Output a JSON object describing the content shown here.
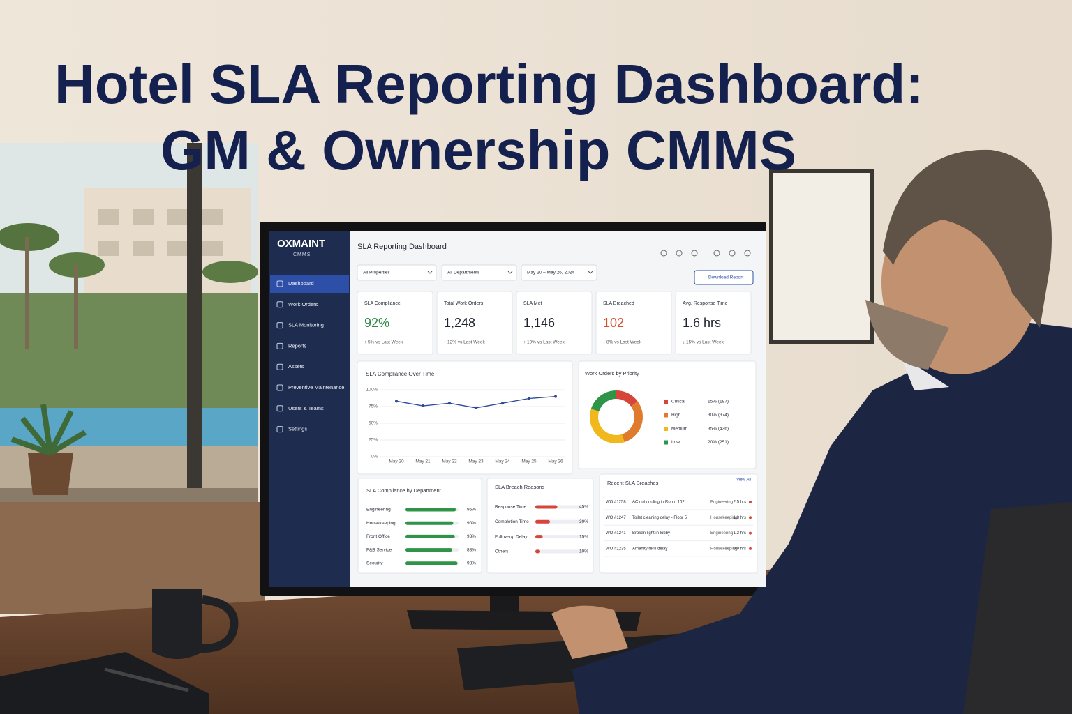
{
  "header": {
    "title_lines": [
      "Hotel SLA Reporting Dashboard:",
      "GM & Ownership CMMS"
    ]
  },
  "dashboard": {
    "brand": "OXMAINT",
    "brand_sub": "CMMS",
    "nav": [
      "Dashboard",
      "Work Orders",
      "SLA Monitoring",
      "Reports",
      "Assets",
      "Preventive Maintenance",
      "Users & Teams",
      "Settings"
    ],
    "page_title": "SLA Reporting Dashboard",
    "filters": [
      "All Properties",
      "All Departments",
      "May 20 – May 26, 2024"
    ],
    "download_button": "Download Report",
    "kpis": [
      {
        "label": "SLA Compliance",
        "value": "92%",
        "change": "↑ 5% vs Last Week",
        "color": "#2f8a4a"
      },
      {
        "label": "Total Work Orders",
        "value": "1,248",
        "change": "↑ 12% vs Last Week",
        "color": "#1f2430"
      },
      {
        "label": "SLA Met",
        "value": "1,146",
        "change": "↑ 10% vs Last Week",
        "color": "#1f2430"
      },
      {
        "label": "SLA Breached",
        "value": "102",
        "change": "↓ 8% vs Last Week",
        "color": "#d0502e"
      },
      {
        "label": "Avg. Response Time",
        "value": "1.6 hrs",
        "change": "↓ 15% vs Last Week",
        "color": "#1f2430"
      }
    ],
    "line_chart": {
      "title": "SLA Compliance Over Time",
      "categories": [
        "May 20",
        "May 21",
        "May 22",
        "May 23",
        "May 24",
        "May 25",
        "May 26"
      ],
      "values": [
        83,
        76,
        80,
        73,
        80,
        87,
        90
      ],
      "color": "#2c4a9a",
      "ylim": [
        0,
        100
      ],
      "yticks": [
        {
          "value": 0,
          "label": "0%"
        },
        {
          "value": 25,
          "label": "25%"
        },
        {
          "value": 50,
          "label": "50%"
        },
        {
          "value": 75,
          "label": "75%"
        },
        {
          "value": 100,
          "label": "100%"
        }
      ]
    },
    "donut": {
      "title": "Work Orders by Priority",
      "categories": [
        "Critical",
        "High",
        "Medium",
        "Low"
      ],
      "values": [
        15,
        30,
        35,
        20
      ],
      "value_labels": [
        "15% (187)",
        "30% (374)",
        "35% (436)",
        "20% (251)"
      ],
      "colors": [
        "#d6453a",
        "#e07b2e",
        "#f0b81c",
        "#2f9447"
      ]
    },
    "departments": {
      "title": "SLA Compliance by Department",
      "categories": [
        "Engineering",
        "Housekeeping",
        "Front Office",
        "F&B Service",
        "Security"
      ],
      "values": [
        95,
        90,
        93,
        88,
        98
      ],
      "value_labels": [
        "95%",
        "90%",
        "93%",
        "88%",
        "98%"
      ],
      "color": "#2f9447",
      "xlim": [
        0,
        100
      ]
    },
    "breach_reasons": {
      "title": "SLA Breach Reasons",
      "categories": [
        "Response Time",
        "Completion Time",
        "Follow-up Delay",
        "Others"
      ],
      "values": [
        45,
        30,
        15,
        10
      ],
      "value_labels": [
        "45%",
        "30%",
        "15%",
        "10%"
      ],
      "color": "#d6453a",
      "xlim": [
        0,
        100
      ]
    },
    "recent": {
      "title": "Recent SLA Breaches",
      "link": "View All",
      "rows": [
        [
          "WO #1258",
          "AC not cooling in Room 102",
          "Engineering",
          "2.5 hrs"
        ],
        [
          "WO #1247",
          "Toilet cleaning delay - Floor 5",
          "Housekeeping",
          "1.8 hrs"
        ],
        [
          "WO #1241",
          "Broken light in lobby",
          "Engineering",
          "1.2 hrs"
        ],
        [
          "WO #1235",
          "Amenity refill delay",
          "Housekeeping",
          "0.9 hrs"
        ]
      ]
    }
  }
}
